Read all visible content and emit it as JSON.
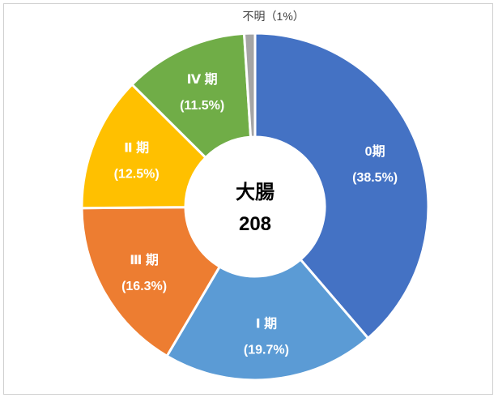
{
  "chart_data": {
    "type": "pie",
    "style": "donut",
    "title": "",
    "center_label": "大腸",
    "center_value": "208",
    "categories": [
      "0期",
      "Ⅰ 期",
      "Ⅲ 期",
      "Ⅱ 期",
      "Ⅳ 期",
      "不明"
    ],
    "values": [
      38.5,
      19.7,
      16.3,
      12.5,
      11.5,
      1
    ],
    "value_labels": [
      "(38.5%)",
      "(19.7%)",
      "(16.3%)",
      "(12.5%)",
      "(11.5%)",
      "（1%）"
    ],
    "colors": [
      "#4472C4",
      "#5B9BD5",
      "#ED7D31",
      "#FFC000",
      "#70AD47",
      "#A5A5A5"
    ],
    "label_colors": [
      "#ffffff",
      "#ffffff",
      "#ffffff",
      "#ffffff",
      "#ffffff",
      "#404040"
    ],
    "start_angle_deg": 0,
    "direction": "clockwise",
    "legend": "none"
  }
}
